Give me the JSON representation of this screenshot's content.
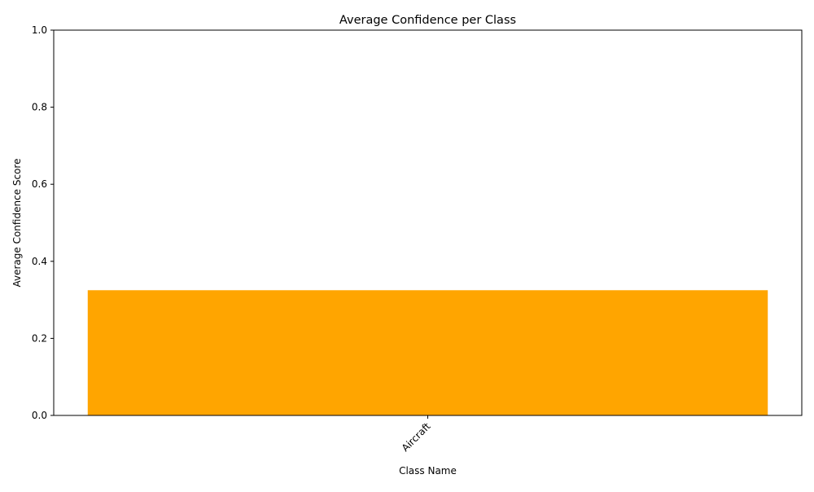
{
  "chart_data": {
    "type": "bar",
    "title": "Average Confidence per Class",
    "xlabel": "Class Name",
    "ylabel": "Average Confidence Score",
    "categories": [
      "Aircraft"
    ],
    "values": [
      0.325
    ],
    "ylim": [
      0,
      1
    ],
    "yticks": [
      0.0,
      0.2,
      0.4,
      0.6,
      0.8,
      1.0
    ],
    "ytick_labels": [
      "0.0",
      "0.2",
      "0.4",
      "0.6",
      "0.8",
      "1.0"
    ],
    "bar_color": "#ffa500",
    "grid": false,
    "xtick_rotation": "45 degrees"
  }
}
